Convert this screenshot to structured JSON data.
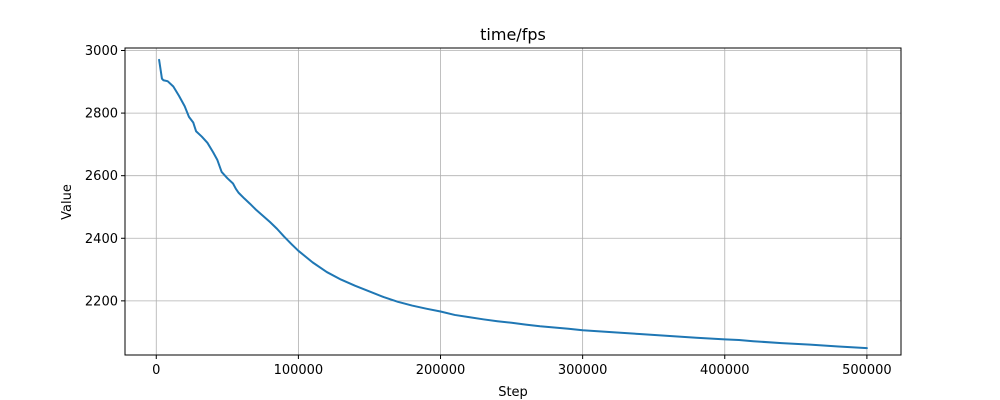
{
  "chart_data": {
    "type": "line",
    "title": "time/fps",
    "xlabel": "Step",
    "ylabel": "Value",
    "xlim": [
      -22000,
      524000
    ],
    "ylim": [
      2027,
      3008
    ],
    "grid": true,
    "xticks": [
      0,
      100000,
      200000,
      300000,
      400000,
      500000
    ],
    "xtick_labels": [
      "0",
      "100000",
      "200000",
      "300000",
      "400000",
      "500000"
    ],
    "yticks": [
      2200,
      2400,
      2600,
      2800,
      3000
    ],
    "ytick_labels": [
      "2200",
      "2400",
      "2600",
      "2800",
      "3000"
    ],
    "series": [
      {
        "color": "#1f77b4",
        "x": [
          2000,
          4000,
          5000,
          8000,
          12000,
          16000,
          20000,
          23000,
          26000,
          28000,
          32000,
          36000,
          40000,
          43000,
          46000,
          50000,
          54000,
          56000,
          58000,
          62000,
          66000,
          70000,
          75000,
          80000,
          85000,
          90000,
          95000,
          100000,
          110000,
          120000,
          130000,
          140000,
          150000,
          160000,
          170000,
          180000,
          190000,
          200000,
          210000,
          220000,
          230000,
          240000,
          250000,
          260000,
          270000,
          280000,
          290000,
          300000,
          320000,
          340000,
          360000,
          380000,
          400000,
          410000,
          420000,
          440000,
          460000,
          480000,
          500000
        ],
        "y": [
          2970,
          2910,
          2905,
          2902,
          2885,
          2855,
          2822,
          2788,
          2770,
          2742,
          2725,
          2705,
          2675,
          2650,
          2612,
          2592,
          2575,
          2558,
          2545,
          2527,
          2510,
          2492,
          2472,
          2452,
          2430,
          2405,
          2382,
          2360,
          2323,
          2292,
          2268,
          2248,
          2230,
          2212,
          2197,
          2185,
          2175,
          2166,
          2155,
          2148,
          2141,
          2135,
          2130,
          2124,
          2119,
          2115,
          2111,
          2106,
          2100,
          2094,
          2088,
          2082,
          2077,
          2075,
          2071,
          2065,
          2060,
          2054,
          2049
        ]
      }
    ]
  }
}
